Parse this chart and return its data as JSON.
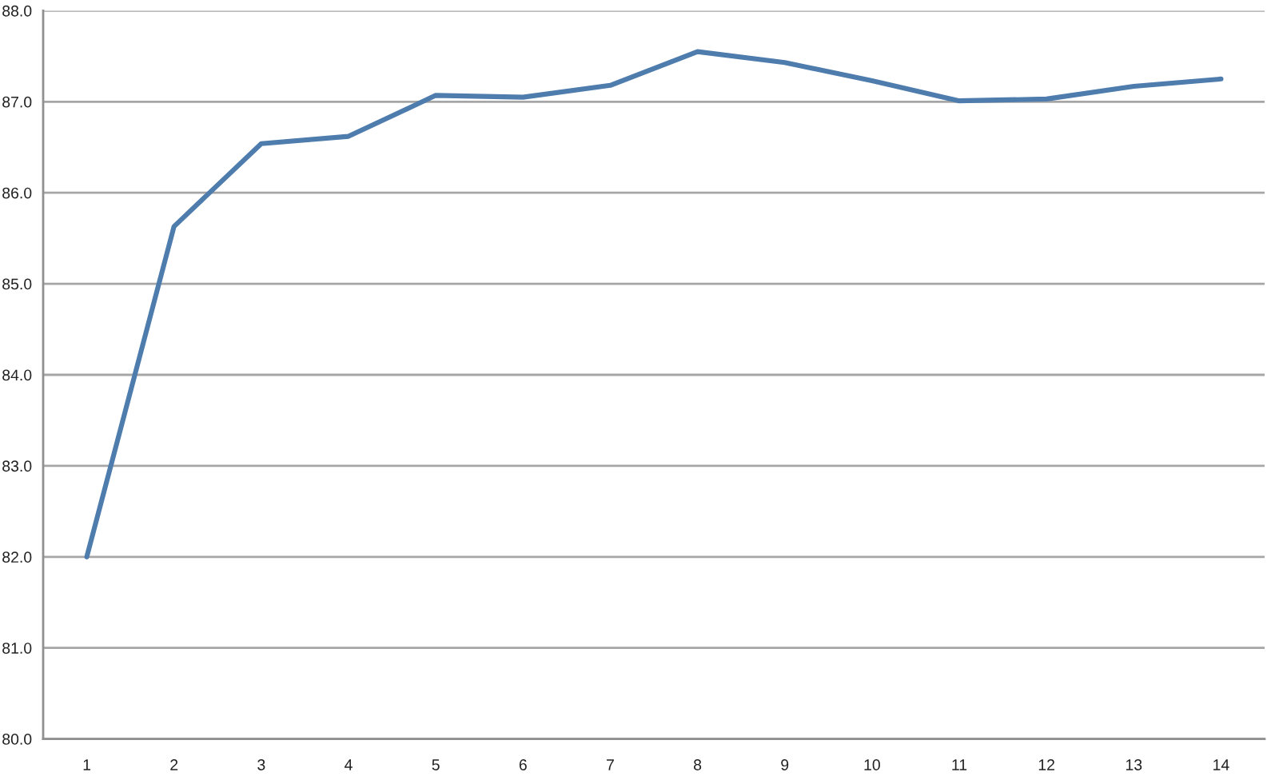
{
  "chart_data": {
    "type": "line",
    "categories": [
      "1",
      "2",
      "3",
      "4",
      "5",
      "6",
      "7",
      "8",
      "9",
      "10",
      "11",
      "12",
      "13",
      "14"
    ],
    "series": [
      {
        "color": "#4e7cad",
        "values": [
          82.0,
          85.63,
          86.54,
          86.62,
          87.07,
          87.05,
          87.18,
          87.55,
          87.43,
          87.23,
          87.01,
          87.03,
          87.17,
          87.25
        ]
      }
    ],
    "ylim": [
      80,
      88
    ],
    "yticks": [
      {
        "value": 80,
        "label": "80.0"
      },
      {
        "value": 81,
        "label": "81.0"
      },
      {
        "value": 82,
        "label": "82.0"
      },
      {
        "value": 83,
        "label": "83.0"
      },
      {
        "value": 84,
        "label": "84.0"
      },
      {
        "value": 85,
        "label": "85.0"
      },
      {
        "value": 86,
        "label": "86.0"
      },
      {
        "value": 87,
        "label": "87.0"
      },
      {
        "value": 88,
        "label": "88.0"
      }
    ],
    "grid": "y",
    "marker": "none",
    "line_style": "solid"
  }
}
